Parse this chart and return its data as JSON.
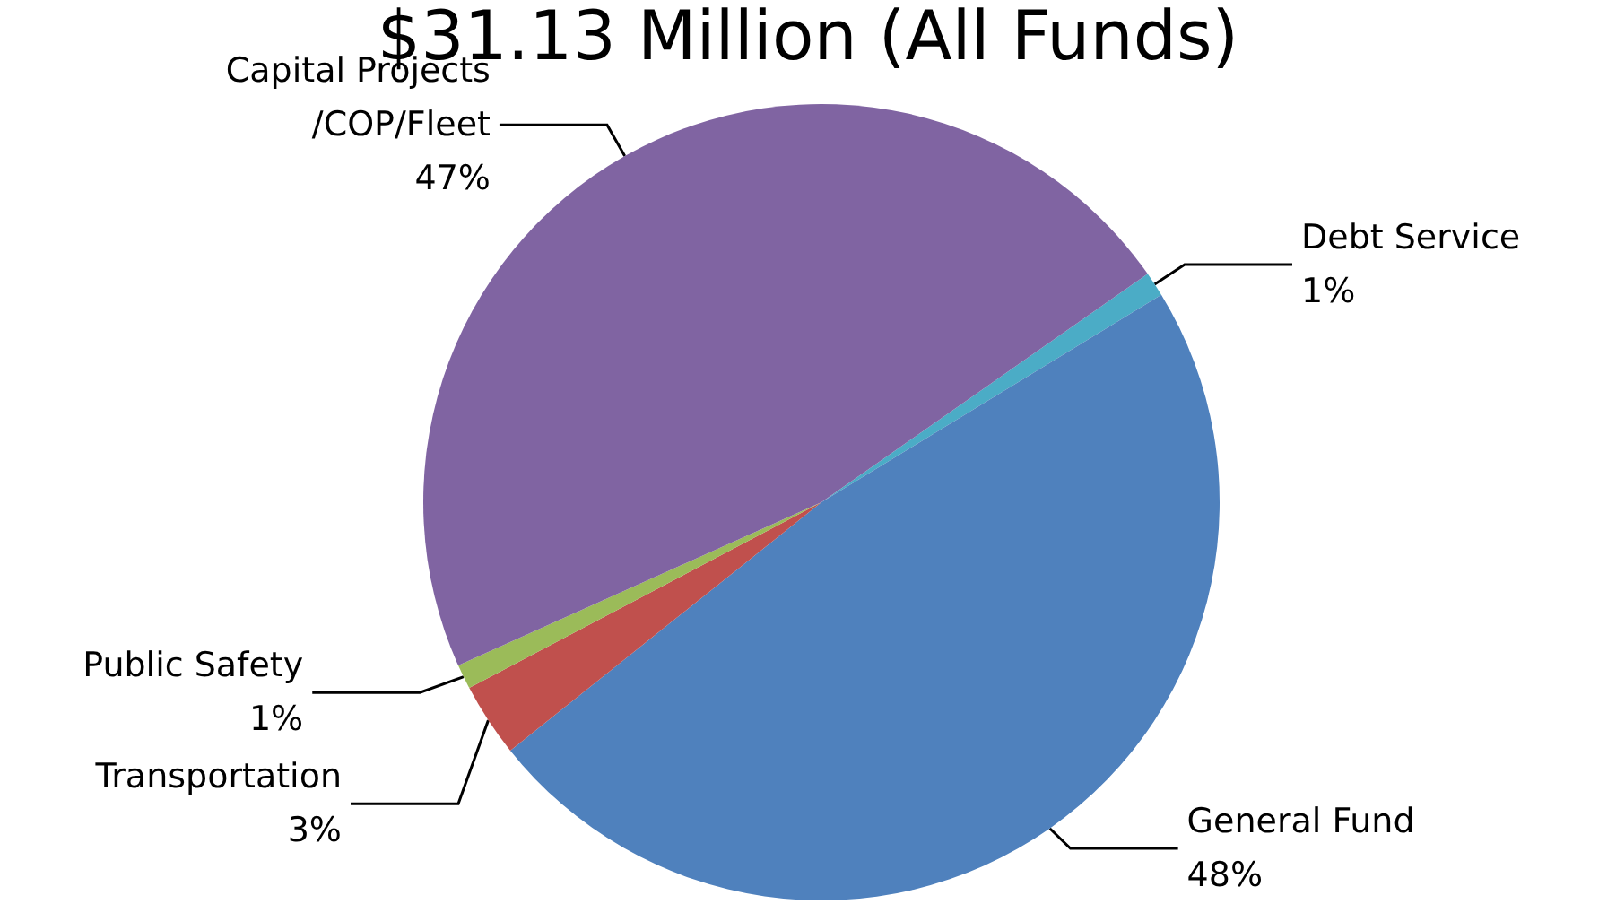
{
  "chart_data": {
    "type": "pie",
    "title": "$31.13 Million (All Funds)",
    "categories": [
      "Debt Service",
      "General Fund",
      "Transportation",
      "Public Safety",
      "Capital Projects/COP/Fleet"
    ],
    "values": [
      1,
      48,
      3,
      1,
      47
    ],
    "value_labels": [
      "1%",
      "48%",
      "3%",
      "1%",
      "47%"
    ],
    "colors": [
      "#4bacc6",
      "#4f81bd",
      "#c0504d",
      "#9bbb59",
      "#8064a2"
    ],
    "legend": false
  }
}
